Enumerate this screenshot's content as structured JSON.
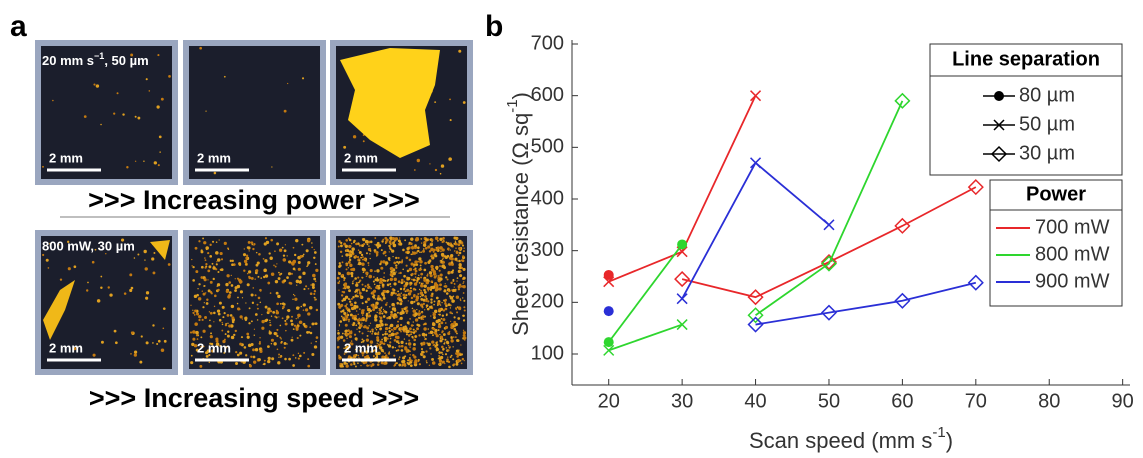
{
  "panel_a": {
    "label": "a",
    "row1": {
      "annotation": {
        "text": "20 mm s",
        "sup": "−1",
        "end": ", 50 µm"
      },
      "scale_bars": [
        "2 mm",
        "2 mm",
        "2 mm"
      ],
      "caption": ">>> Increasing power >>>"
    },
    "row2": {
      "annotation": {
        "text": "800 mW, 30 µm"
      },
      "scale_bars": [
        "2 mm",
        "2 mm",
        "2 mm"
      ],
      "caption": ">>> Increasing speed >>>"
    }
  },
  "chart_data": {
    "type": "line",
    "panel_label": "b",
    "xlabel": {
      "text": "Scan speed (mm s",
      "sup": "-1",
      "end": ")"
    },
    "ylabel": {
      "text": "Sheet resistance (Ω sq",
      "sup": "-1",
      "end": ")"
    },
    "xlim": [
      15,
      91
    ],
    "xticks": [
      20,
      30,
      40,
      50,
      60,
      70,
      80,
      90
    ],
    "ylim": [
      40,
      700
    ],
    "yticks": [
      100,
      200,
      300,
      400,
      500,
      600,
      700
    ],
    "line_separation_legend": {
      "title": "Line separation",
      "entries": [
        {
          "name": "80 µm",
          "marker": "dot"
        },
        {
          "name": "50 µm",
          "marker": "x"
        },
        {
          "name": "30 µm",
          "marker": "diamond"
        }
      ]
    },
    "power_legend_title": "Power",
    "series": [
      {
        "name": "700 mW",
        "color": "#e8272a",
        "lines": [
          {
            "x": [
              20
            ],
            "values": [
              253
            ]
          },
          {
            "x": [
              20,
              30,
              40
            ],
            "values": [
              240,
              298,
              600
            ]
          },
          {
            "x": [
              30,
              40,
              50,
              60,
              70
            ],
            "values": [
              245,
              210,
              278,
              348,
              423
            ]
          }
        ]
      },
      {
        "name": "800 mW",
        "color": "#2ed62e",
        "lines": [
          {
            "x": [
              20,
              30
            ],
            "values": [
              123,
              312
            ]
          },
          {
            "x": [
              20,
              30
            ],
            "values": [
              107,
              157
            ]
          },
          {
            "x": [
              40,
              50,
              60
            ],
            "values": [
              175,
              275,
              590
            ]
          }
        ]
      },
      {
        "name": "900 mW",
        "color": "#2a2fd6",
        "lines": [
          {
            "x": [
              20
            ],
            "values": [
              183
            ]
          },
          {
            "x": [
              30,
              40,
              50
            ],
            "values": [
              207,
              470,
              350
            ]
          },
          {
            "x": [
              40,
              50,
              60,
              70
            ],
            "values": [
              157,
              180,
              203,
              238
            ]
          }
        ]
      }
    ]
  }
}
